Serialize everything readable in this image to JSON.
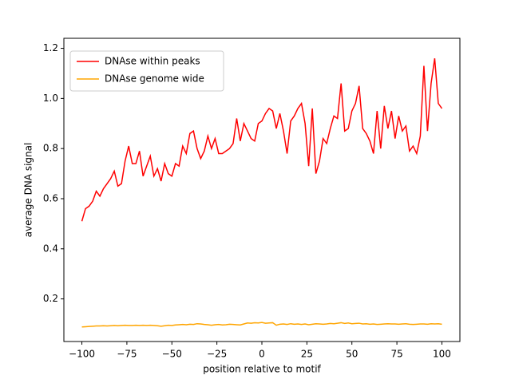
{
  "chart_data": {
    "type": "line",
    "xlabel": "position relative to motif",
    "ylabel": "average DNA signal",
    "x": [
      -100,
      -98,
      -96,
      -94,
      -92,
      -90,
      -88,
      -86,
      -84,
      -82,
      -80,
      -78,
      -76,
      -74,
      -72,
      -70,
      -68,
      -66,
      -64,
      -62,
      -60,
      -58,
      -56,
      -54,
      -52,
      -50,
      -48,
      -46,
      -44,
      -42,
      -40,
      -38,
      -36,
      -34,
      -32,
      -30,
      -28,
      -26,
      -24,
      -22,
      -20,
      -18,
      -16,
      -14,
      -12,
      -10,
      -8,
      -6,
      -4,
      -2,
      0,
      2,
      4,
      6,
      8,
      10,
      12,
      14,
      16,
      18,
      20,
      22,
      24,
      26,
      28,
      30,
      32,
      34,
      36,
      38,
      40,
      42,
      44,
      46,
      48,
      50,
      52,
      54,
      56,
      58,
      60,
      62,
      64,
      66,
      68,
      70,
      72,
      74,
      76,
      78,
      80,
      82,
      84,
      86,
      88,
      90,
      92,
      94,
      96,
      98,
      100
    ],
    "series": [
      {
        "name": "DNAse within peaks",
        "color": "#ff0000",
        "values": [
          0.51,
          0.56,
          0.57,
          0.59,
          0.63,
          0.61,
          0.64,
          0.66,
          0.68,
          0.71,
          0.65,
          0.66,
          0.75,
          0.81,
          0.74,
          0.74,
          0.79,
          0.69,
          0.73,
          0.77,
          0.69,
          0.72,
          0.67,
          0.74,
          0.7,
          0.69,
          0.74,
          0.73,
          0.81,
          0.78,
          0.86,
          0.87,
          0.8,
          0.76,
          0.79,
          0.85,
          0.8,
          0.84,
          0.78,
          0.78,
          0.79,
          0.8,
          0.82,
          0.92,
          0.83,
          0.9,
          0.87,
          0.84,
          0.83,
          0.9,
          0.91,
          0.94,
          0.96,
          0.95,
          0.88,
          0.94,
          0.87,
          0.78,
          0.91,
          0.93,
          0.96,
          0.98,
          0.9,
          0.73,
          0.96,
          0.7,
          0.75,
          0.84,
          0.82,
          0.88,
          0.93,
          0.92,
          1.06,
          0.87,
          0.88,
          0.95,
          0.98,
          1.05,
          0.88,
          0.86,
          0.83,
          0.78,
          0.95,
          0.8,
          0.97,
          0.88,
          0.95,
          0.84,
          0.93,
          0.87,
          0.89,
          0.79,
          0.81,
          0.78,
          0.85,
          1.13,
          0.87,
          1.06,
          1.16,
          0.98,
          0.96
        ]
      },
      {
        "name": "DNAse genome wide",
        "color": "#ffa500",
        "values": [
          0.088,
          0.089,
          0.09,
          0.091,
          0.092,
          0.092,
          0.093,
          0.092,
          0.093,
          0.094,
          0.093,
          0.094,
          0.095,
          0.094,
          0.094,
          0.095,
          0.094,
          0.095,
          0.094,
          0.095,
          0.094,
          0.093,
          0.091,
          0.093,
          0.095,
          0.094,
          0.096,
          0.097,
          0.098,
          0.097,
          0.099,
          0.098,
          0.101,
          0.1,
          0.098,
          0.097,
          0.095,
          0.097,
          0.098,
          0.096,
          0.097,
          0.099,
          0.098,
          0.097,
          0.096,
          0.1,
          0.104,
          0.103,
          0.105,
          0.104,
          0.106,
          0.103,
          0.104,
          0.105,
          0.095,
          0.099,
          0.1,
          0.098,
          0.101,
          0.099,
          0.1,
          0.098,
          0.1,
          0.097,
          0.099,
          0.101,
          0.1,
          0.099,
          0.1,
          0.102,
          0.101,
          0.103,
          0.105,
          0.102,
          0.104,
          0.101,
          0.102,
          0.103,
          0.1,
          0.101,
          0.099,
          0.1,
          0.098,
          0.099,
          0.1,
          0.101,
          0.1,
          0.1,
          0.099,
          0.1,
          0.101,
          0.099,
          0.098,
          0.099,
          0.1,
          0.1,
          0.099,
          0.101,
          0.1,
          0.101,
          0.099
        ]
      }
    ],
    "xlim": [
      -110,
      110
    ],
    "ylim": [
      0.03,
      1.24
    ],
    "xticks": [
      {
        "value": -100,
        "label": "−100"
      },
      {
        "value": -75,
        "label": "−75"
      },
      {
        "value": -50,
        "label": "−50"
      },
      {
        "value": -25,
        "label": "−25"
      },
      0,
      25,
      50,
      75,
      100
    ],
    "yticks": [
      0.2,
      0.4,
      0.6,
      0.8,
      {
        "value": 1,
        "label": "1.0"
      },
      1.2
    ],
    "legend": "upper left"
  }
}
